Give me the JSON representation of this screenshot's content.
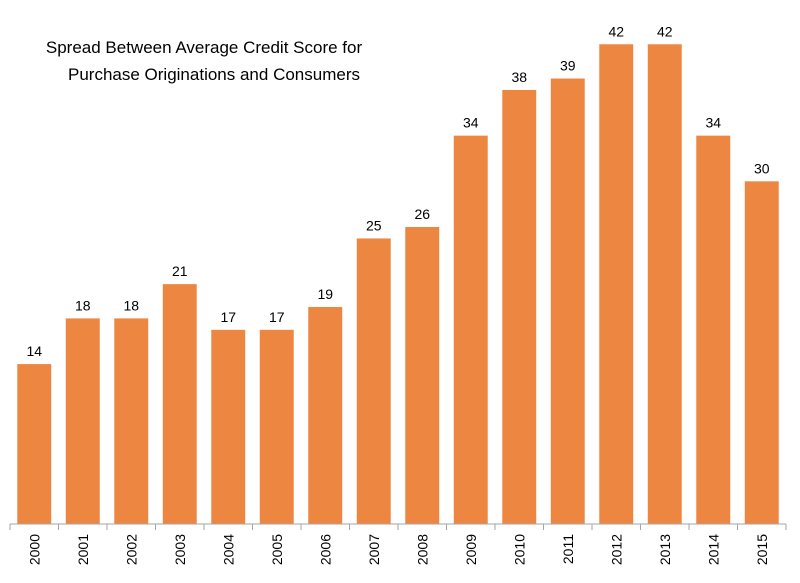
{
  "chart_data": {
    "type": "bar",
    "title": [
      "Spread Between Average Credit Score for",
      "Purchase Originations and Consumers"
    ],
    "xlabel": "",
    "ylabel": "",
    "categories": [
      "2000",
      "2001",
      "2002",
      "2003",
      "2004",
      "2005",
      "2006",
      "2007",
      "2008",
      "2009",
      "2010",
      "2011",
      "2012",
      "2013",
      "2014",
      "2015"
    ],
    "values": [
      14,
      18,
      18,
      21,
      17,
      17,
      19,
      25,
      26,
      34,
      38,
      39,
      42,
      42,
      34,
      30
    ],
    "ylim": [
      0,
      45
    ],
    "grid": false,
    "legend": "none",
    "bar_color": "#ED8640",
    "axis_color": "#A6A6A6"
  }
}
